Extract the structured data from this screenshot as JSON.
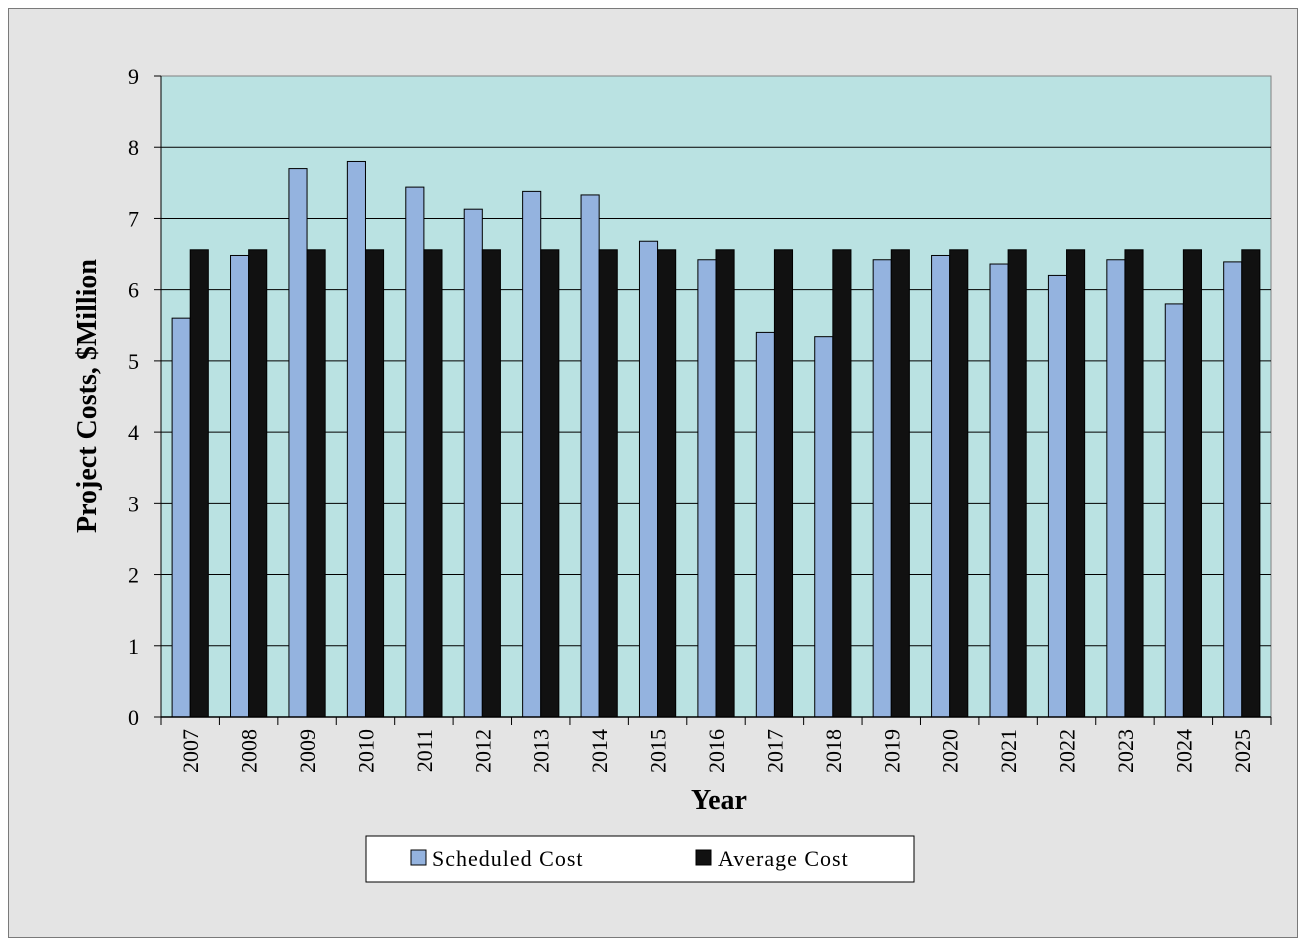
{
  "chart_data": {
    "type": "bar",
    "xlabel": "Year",
    "ylabel": "Project Costs, $Million",
    "ylim": [
      0,
      9
    ],
    "yticks": [
      "0",
      "1",
      "2",
      "3",
      "4",
      "5",
      "6",
      "7",
      "8",
      "9"
    ],
    "grid": true,
    "legend_position": "bottom-center",
    "categories": [
      "2007",
      "2008",
      "2009",
      "2010",
      "2011",
      "2012",
      "2013",
      "2014",
      "2015",
      "2016",
      "2017",
      "2018",
      "2019",
      "2020",
      "2021",
      "2022",
      "2023",
      "2024",
      "2025"
    ],
    "series": [
      {
        "name": "Scheduled Cost",
        "color": "#94b3df",
        "values": [
          5.6,
          6.48,
          7.7,
          7.8,
          7.44,
          7.13,
          7.38,
          7.33,
          6.68,
          6.42,
          5.4,
          5.34,
          6.42,
          6.48,
          6.36,
          6.2,
          6.42,
          5.8,
          6.39
        ]
      },
      {
        "name": "Average Cost",
        "color": "#111111",
        "values": [
          6.56,
          6.56,
          6.56,
          6.56,
          6.56,
          6.56,
          6.56,
          6.56,
          6.56,
          6.56,
          6.56,
          6.56,
          6.56,
          6.56,
          6.56,
          6.56,
          6.56,
          6.56,
          6.56
        ]
      }
    ],
    "plot_background": "#bae2e2",
    "frame_background": "#e4e4e4"
  }
}
